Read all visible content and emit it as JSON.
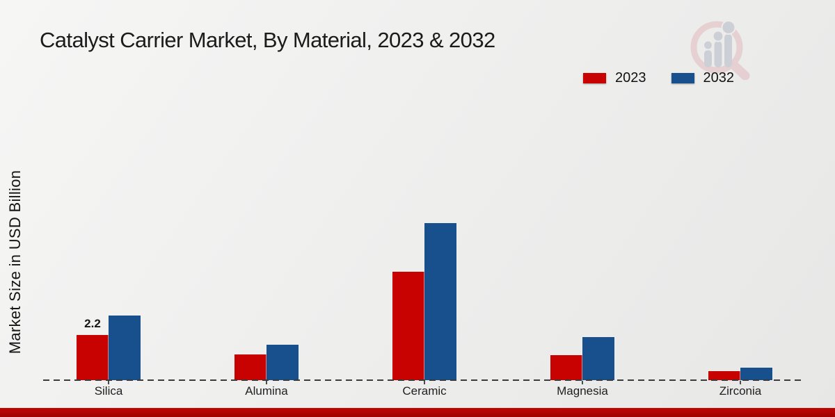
{
  "chart_data": {
    "type": "bar",
    "title": "Catalyst Carrier Market, By Material, 2023 & 2032",
    "ylabel": "Market Size in USD Billion",
    "xlabel": "",
    "categories": [
      "Silica",
      "Alumina",
      "Ceramic",
      "Magnesia",
      "Zirconia"
    ],
    "series": [
      {
        "name": "2023",
        "color": "#c80101",
        "values": [
          2.2,
          1.25,
          5.3,
          1.22,
          0.44
        ]
      },
      {
        "name": "2032",
        "color": "#17508c",
        "values": [
          3.15,
          1.75,
          7.7,
          2.1,
          0.62
        ]
      }
    ],
    "annotations": [
      {
        "category_index": 0,
        "series_index": 0,
        "text": "2.2"
      }
    ],
    "ylim": [
      0,
      9
    ],
    "grid": "off",
    "baseline_style": "dashed",
    "legend_position": "top-right"
  },
  "branding": {
    "logo_name": "magnifier-bar-chart-watermark",
    "logo_pink": "#e6cdd0",
    "logo_gray": "#c9ced4",
    "bottom_bar_top": "#c30404",
    "bottom_bar_bottom": "#9c0101"
  }
}
